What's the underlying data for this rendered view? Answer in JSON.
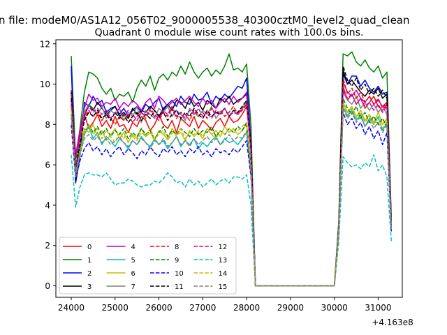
{
  "figure": {
    "suptitle": "n file: modeM0/AS1A12_056T02_9000005538_40300cztM0_level2_quad_clean",
    "title": "Quadrant 0 module wise count rates with 100.0s bins."
  },
  "chart_data": {
    "type": "line",
    "title": "Quadrant 0 module wise count rates with 100.0s bins.",
    "xlabel": "",
    "ylabel": "",
    "x_offset_label": "+4.163e8",
    "xlim": [
      23650,
      31550
    ],
    "ylim": [
      -0.57,
      12.2
    ],
    "xticks": [
      24000,
      25000,
      26000,
      27000,
      28000,
      29000,
      30000,
      31000
    ],
    "yticks": [
      0,
      2,
      4,
      6,
      8,
      10,
      12
    ],
    "grid": false,
    "legend": {
      "placement": "lower-left",
      "ncol": 4
    },
    "x_ranges": [
      [
        24000,
        28100
      ],
      [
        28200,
        30000
      ],
      [
        30100,
        31200
      ]
    ],
    "series": [
      {
        "name": "0",
        "color": "#ff0000",
        "dash": "solid",
        "seg1": [
          9.7,
          5.4,
          7.6,
          8.5,
          7.8,
          8.1,
          8.5,
          7.9,
          8.2,
          7.8,
          8.4,
          7.9,
          8.0,
          7.6,
          8.1,
          7.9,
          8.4,
          8.2,
          7.7,
          8.0,
          8.5,
          8.0,
          7.8,
          8.2,
          7.6,
          8.3,
          8.1,
          7.9,
          8.4,
          7.8,
          8.2,
          8.0,
          7.7,
          8.1,
          8.3,
          7.9,
          8.4,
          8.1,
          8.2,
          8.5,
          8.9,
          7.0
        ],
        "seg3": [
          3.0,
          9.9,
          9.2,
          9.5,
          9.0,
          9.3,
          8.8,
          9.1,
          9.4,
          8.9,
          8.7,
          9.0,
          3.1
        ]
      },
      {
        "name": "1",
        "color": "#008000",
        "dash": "solid",
        "seg1": [
          11.4,
          6.3,
          7.8,
          9.6,
          10.6,
          10.5,
          10.3,
          9.8,
          9.5,
          9.8,
          9.2,
          9.5,
          9.4,
          9.6,
          9.1,
          9.8,
          10.2,
          9.9,
          10.4,
          9.7,
          10.3,
          10.5,
          10.2,
          10.6,
          10.4,
          10.9,
          10.5,
          11.1,
          10.6,
          10.3,
          10.6,
          10.8,
          10.4,
          10.7,
          10.5,
          10.9,
          11.5,
          10.7,
          10.8,
          10.6,
          11.0,
          7.9
        ],
        "seg3": [
          3.2,
          11.5,
          11.4,
          11.6,
          11.1,
          10.9,
          11.2,
          10.8,
          10.6,
          10.9,
          10.3,
          10.6,
          3.3
        ]
      },
      {
        "name": "2",
        "color": "#0000ff",
        "dash": "solid",
        "seg1": [
          10.9,
          5.1,
          6.4,
          9.1,
          8.9,
          9.4,
          9.0,
          9.2,
          8.6,
          8.8,
          8.9,
          8.5,
          8.8,
          8.4,
          8.7,
          8.9,
          8.6,
          9.0,
          8.8,
          9.1,
          9.3,
          8.7,
          9.0,
          9.2,
          8.9,
          9.4,
          9.1,
          9.0,
          9.5,
          9.2,
          9.3,
          9.6,
          9.0,
          9.4,
          9.2,
          9.5,
          9.3,
          9.6,
          9.9,
          9.8,
          10.3,
          7.0
        ],
        "seg3": [
          2.8,
          10.5,
          10.0,
          10.4,
          10.4,
          9.9,
          10.2,
          9.8,
          9.6,
          9.9,
          9.5,
          9.6,
          3.0
        ]
      },
      {
        "name": "3",
        "color": "#000000",
        "dash": "solid",
        "seg1": [
          9.6,
          5.2,
          7.3,
          8.4,
          9.0,
          8.7,
          9.1,
          8.8,
          8.5,
          8.7,
          8.9,
          8.4,
          8.6,
          8.3,
          8.8,
          8.5,
          8.7,
          8.6,
          8.9,
          8.7,
          8.4,
          8.8,
          9.0,
          8.7,
          9.2,
          9.1,
          8.8,
          9.3,
          8.9,
          9.1,
          8.7,
          9.2,
          9.0,
          8.8,
          9.3,
          9.1,
          9.4,
          9.0,
          9.2,
          9.3,
          9.5,
          6.9
        ],
        "seg3": [
          2.9,
          10.7,
          10.0,
          10.2,
          9.9,
          9.6,
          9.4,
          9.7,
          9.5,
          9.8,
          9.3,
          9.5,
          3.2
        ]
      },
      {
        "name": "4",
        "color": "#bf00bf",
        "dash": "solid",
        "seg1": [
          9.2,
          6.5,
          7.7,
          8.8,
          9.5,
          9.2,
          9.3,
          8.9,
          9.1,
          9.0,
          9.3,
          8.8,
          9.1,
          8.9,
          9.2,
          9.0,
          8.7,
          9.1,
          9.3,
          8.8,
          9.4,
          9.2,
          8.9,
          9.1,
          9.3,
          9.0,
          9.2,
          9.4,
          9.1,
          8.9,
          9.3,
          9.0,
          9.2,
          8.8,
          9.1,
          9.3,
          9.0,
          9.4,
          9.1,
          9.3,
          9.6,
          6.8
        ],
        "seg3": [
          3.0,
          10.1,
          9.6,
          9.4,
          9.7,
          9.3,
          9.1,
          9.4,
          9.0,
          9.2,
          8.9,
          9.1,
          3.0
        ]
      },
      {
        "name": "5",
        "color": "#00bfbf",
        "dash": "solid",
        "seg1": [
          8.5,
          5.6,
          6.5,
          7.5,
          7.9,
          7.3,
          7.6,
          7.0,
          7.4,
          7.2,
          6.9,
          7.3,
          7.1,
          6.8,
          7.2,
          7.0,
          7.4,
          7.1,
          6.9,
          7.3,
          7.0,
          7.2,
          6.8,
          7.1,
          7.4,
          6.9,
          7.2,
          7.0,
          7.3,
          6.8,
          7.1,
          6.9,
          7.2,
          7.4,
          7.0,
          7.3,
          7.1,
          7.2,
          7.0,
          7.3,
          7.6,
          5.5
        ],
        "seg3": [
          2.8,
          8.9,
          8.4,
          8.7,
          8.2,
          8.5,
          7.9,
          8.3,
          8.0,
          8.4,
          7.7,
          8.1,
          2.9
        ]
      },
      {
        "name": "6",
        "color": "#bfbf00",
        "dash": "solid",
        "seg1": [
          8.8,
          5.6,
          6.6,
          7.8,
          7.6,
          8.0,
          7.4,
          7.7,
          7.2,
          7.5,
          7.8,
          7.3,
          7.6,
          7.1,
          7.5,
          7.3,
          7.8,
          7.4,
          7.6,
          7.2,
          7.7,
          7.5,
          7.3,
          7.8,
          7.5,
          7.6,
          7.2,
          7.7,
          7.4,
          7.6,
          7.3,
          7.8,
          7.5,
          7.7,
          7.4,
          7.9,
          7.6,
          7.8,
          7.5,
          7.7,
          8.0,
          5.9
        ],
        "seg3": [
          2.7,
          9.1,
          8.6,
          8.9,
          8.4,
          8.7,
          8.2,
          8.5,
          8.1,
          8.6,
          8.0,
          8.3,
          2.8
        ]
      },
      {
        "name": "7",
        "color": "#808080",
        "dash": "solid",
        "seg1": [
          9.2,
          5.7,
          7.2,
          8.6,
          9.0,
          8.8,
          8.5,
          8.9,
          8.3,
          8.7,
          8.5,
          8.8,
          8.2,
          8.6,
          8.4,
          8.9,
          8.1,
          8.7,
          8.5,
          8.3,
          8.8,
          8.6,
          8.9,
          8.4,
          8.7,
          8.5,
          8.2,
          8.8,
          8.6,
          8.4,
          8.7,
          8.5,
          8.9,
          8.3,
          8.6,
          8.8,
          8.4,
          8.7,
          8.5,
          8.8,
          9.1,
          6.6
        ],
        "seg3": [
          2.9,
          9.6,
          9.2,
          9.0,
          9.4,
          8.8,
          9.1,
          8.7,
          9.0,
          8.6,
          8.9,
          8.5,
          3.0
        ]
      },
      {
        "name": "8",
        "color": "#ff0000",
        "dash": "dashed",
        "seg1": [
          9.5,
          6.0,
          7.4,
          8.3,
          8.7,
          8.4,
          8.6,
          8.2,
          8.5,
          8.3,
          8.0,
          8.4,
          8.2,
          8.5,
          8.1,
          8.4,
          8.6,
          8.3,
          8.7,
          8.4,
          8.2,
          8.6,
          8.4,
          8.8,
          8.3,
          8.6,
          8.5,
          8.2,
          8.7,
          8.4,
          8.6,
          8.3,
          8.8,
          8.5,
          8.7,
          8.4,
          8.6,
          8.9,
          8.5,
          8.7,
          9.0,
          6.6
        ],
        "seg3": [
          2.8,
          10.3,
          9.5,
          9.8,
          9.3,
          9.6,
          9.1,
          9.4,
          9.0,
          9.3,
          8.8,
          9.1,
          3.0
        ]
      },
      {
        "name": "9",
        "color": "#008000",
        "dash": "dashed",
        "seg1": [
          8.7,
          5.8,
          6.8,
          7.6,
          8.0,
          7.6,
          7.9,
          7.5,
          7.8,
          7.4,
          7.7,
          7.5,
          7.8,
          7.3,
          7.6,
          7.4,
          7.8,
          7.5,
          7.7,
          7.3,
          7.6,
          7.9,
          7.4,
          7.7,
          7.5,
          7.8,
          7.6,
          7.4,
          7.8,
          7.5,
          7.7,
          7.6,
          7.9,
          7.4,
          7.7,
          7.5,
          7.8,
          7.6,
          7.9,
          7.7,
          8.1,
          5.9
        ],
        "seg3": [
          2.7,
          9.3,
          8.8,
          8.5,
          8.9,
          8.3,
          8.6,
          8.1,
          8.4,
          8.0,
          8.3,
          7.9,
          2.9
        ]
      },
      {
        "name": "10",
        "color": "#0000ff",
        "dash": "dashed",
        "seg1": [
          8.0,
          5.3,
          6.2,
          6.8,
          7.1,
          6.7,
          6.9,
          6.5,
          6.8,
          6.4,
          6.7,
          6.9,
          6.5,
          6.8,
          6.6,
          6.3,
          6.7,
          6.5,
          6.9,
          6.6,
          6.4,
          6.8,
          6.6,
          6.9,
          6.5,
          6.7,
          6.4,
          6.8,
          6.6,
          6.9,
          6.5,
          6.7,
          6.4,
          6.8,
          6.6,
          6.7,
          6.5,
          6.8,
          6.6,
          6.9,
          7.2,
          5.4
        ],
        "seg3": [
          2.6,
          8.6,
          8.0,
          8.3,
          7.8,
          8.1,
          7.5,
          7.9,
          7.3,
          7.7,
          7.0,
          7.6,
          2.7
        ]
      },
      {
        "name": "11",
        "color": "#000000",
        "dash": "dashed",
        "seg1": [
          9.3,
          5.9,
          7.0,
          8.2,
          8.6,
          8.4,
          8.7,
          8.3,
          8.5,
          8.2,
          8.6,
          8.3,
          8.5,
          8.1,
          8.4,
          8.6,
          8.2,
          8.5,
          8.3,
          8.7,
          8.4,
          8.6,
          8.2,
          8.5,
          8.7,
          8.3,
          8.6,
          8.4,
          8.8,
          8.5,
          8.3,
          8.7,
          8.4,
          8.6,
          8.5,
          8.8,
          8.4,
          8.7,
          8.6,
          8.9,
          9.2,
          6.8
        ],
        "seg3": [
          2.9,
          10.9,
          10.2,
          9.9,
          10.3,
          9.7,
          10.0,
          9.5,
          9.8,
          9.4,
          9.7,
          9.3,
          3.1
        ]
      },
      {
        "name": "12",
        "color": "#bf00bf",
        "dash": "dashed",
        "seg1": [
          9.0,
          5.9,
          7.5,
          8.4,
          8.9,
          8.6,
          8.8,
          8.5,
          8.7,
          8.3,
          8.6,
          8.8,
          8.4,
          8.7,
          8.5,
          8.2,
          8.6,
          8.4,
          8.8,
          8.5,
          8.3,
          8.7,
          8.5,
          8.9,
          8.4,
          8.6,
          8.3,
          8.7,
          8.5,
          8.8,
          8.4,
          8.6,
          8.3,
          8.7,
          8.5,
          8.8,
          8.4,
          8.6,
          8.5,
          8.8,
          9.0,
          6.7
        ],
        "seg3": [
          2.8,
          9.7,
          9.3,
          9.5,
          9.0,
          9.3,
          8.9,
          9.1,
          8.7,
          9.0,
          8.6,
          8.9,
          3.0
        ]
      },
      {
        "name": "13",
        "color": "#00bfbf",
        "dash": "dashed",
        "seg1": [
          6.5,
          3.9,
          4.9,
          5.5,
          5.6,
          5.5,
          5.5,
          5.4,
          5.6,
          5.3,
          5.0,
          5.1,
          5.1,
          5.3,
          5.2,
          5.0,
          4.9,
          5.0,
          5.0,
          5.2,
          5.1,
          5.3,
          5.6,
          5.4,
          5.1,
          5.2,
          4.9,
          5.3,
          5.0,
          5.2,
          4.9,
          5.1,
          5.3,
          5.0,
          5.2,
          5.3,
          5.1,
          5.4,
          5.4,
          5.3,
          5.5,
          4.0
        ],
        "seg3": [
          2.2,
          6.4,
          6.1,
          5.9,
          6.0,
          5.8,
          6.1,
          5.9,
          6.5,
          5.7,
          6.0,
          5.4,
          2.2
        ]
      },
      {
        "name": "14",
        "color": "#bfbf00",
        "dash": "dashed",
        "seg1": [
          8.7,
          5.4,
          6.6,
          7.6,
          8.0,
          7.5,
          7.8,
          7.3,
          7.7,
          7.4,
          7.1,
          7.6,
          7.3,
          7.7,
          7.4,
          7.2,
          7.6,
          7.4,
          7.8,
          7.3,
          7.5,
          7.7,
          7.2,
          7.6,
          7.4,
          7.8,
          7.3,
          7.6,
          7.5,
          7.7,
          7.4,
          7.8,
          7.5,
          7.3,
          7.7,
          7.5,
          7.8,
          7.6,
          7.7,
          7.9,
          8.1,
          5.8
        ],
        "seg3": [
          2.7,
          9.0,
          8.5,
          8.8,
          8.3,
          8.6,
          8.1,
          8.4,
          8.0,
          8.3,
          7.8,
          8.2,
          2.8
        ]
      },
      {
        "name": "15",
        "color": "#808080",
        "dash": "dashed",
        "seg1": [
          8.4,
          5.5,
          6.5,
          7.3,
          7.5,
          7.2,
          7.4,
          7.1,
          7.3,
          7.0,
          7.2,
          7.4,
          7.1,
          6.9,
          7.2,
          7.0,
          7.3,
          7.1,
          6.8,
          7.2,
          7.0,
          7.3,
          6.9,
          7.1,
          7.4,
          7.0,
          7.2,
          6.9,
          7.3,
          7.0,
          7.2,
          7.4,
          7.1,
          7.3,
          7.0,
          7.2,
          7.5,
          7.2,
          7.4,
          7.3,
          7.7,
          5.6
        ],
        "seg3": [
          2.7,
          8.8,
          8.3,
          8.6,
          8.1,
          8.4,
          7.9,
          8.2,
          7.8,
          8.1,
          7.6,
          8.0,
          2.8
        ]
      }
    ]
  }
}
